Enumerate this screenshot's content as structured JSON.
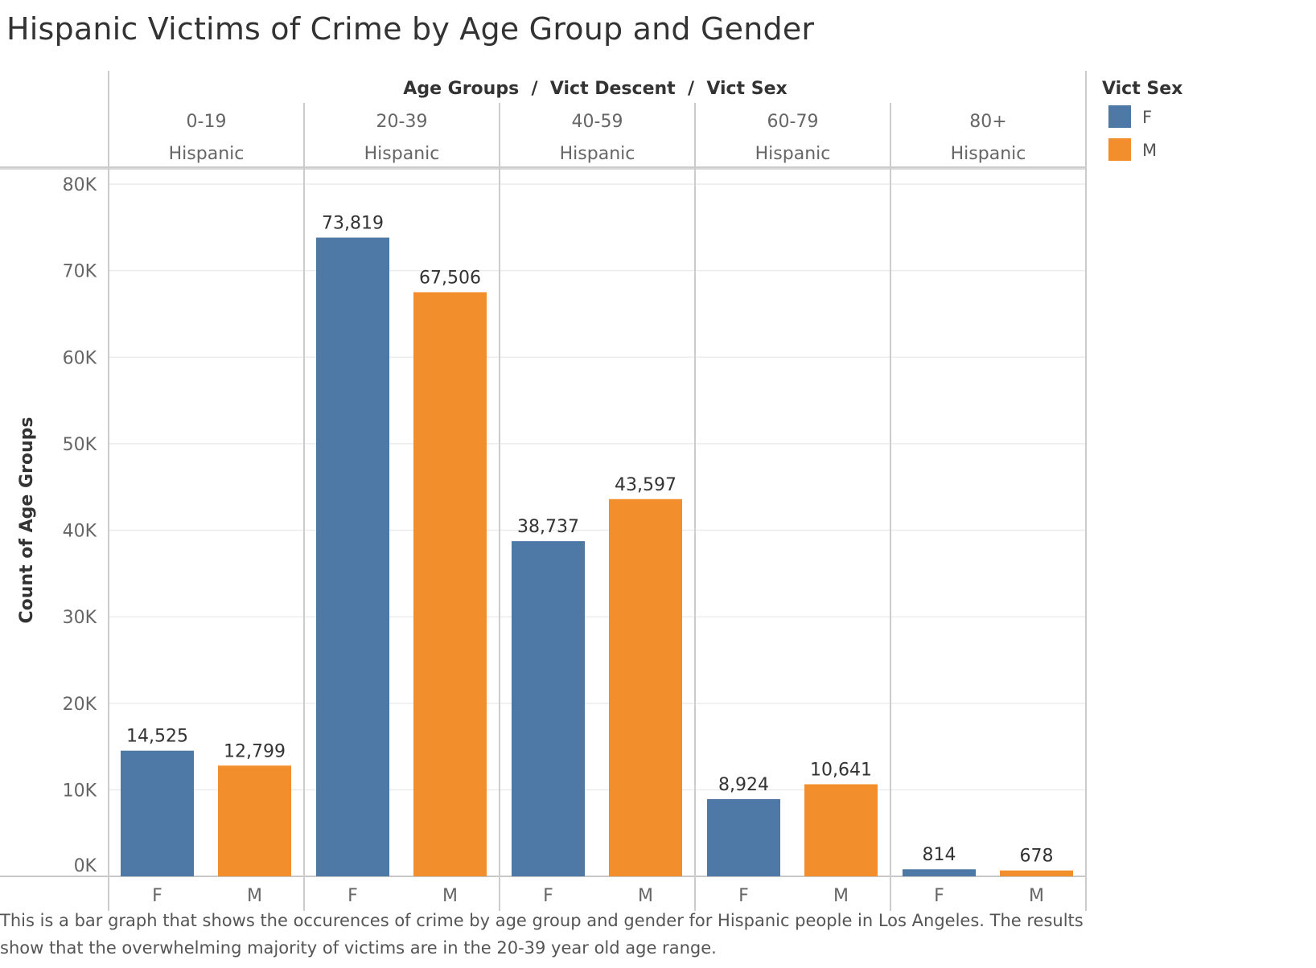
{
  "chart_data": {
    "type": "bar",
    "title": "Hispanic Victims of Crime by Age Group and Gender",
    "header_label": "Age Groups  /  Vict Descent  /  Vict Sex",
    "ylabel": "Count of Age Groups",
    "ylim": [
      0,
      80000
    ],
    "yticks": [
      0,
      10000,
      20000,
      30000,
      40000,
      50000,
      60000,
      70000,
      80000
    ],
    "ytick_labels": [
      "0K",
      "10K",
      "20K",
      "30K",
      "40K",
      "50K",
      "60K",
      "70K",
      "80K"
    ],
    "grid": true,
    "legend": {
      "title": "Vict Sex",
      "position": "right",
      "entries": [
        {
          "label": "F",
          "color": "#4e79a7"
        },
        {
          "label": "M",
          "color": "#f28e2b"
        }
      ]
    },
    "groups": [
      {
        "age_group": "0-19",
        "descent": "Hispanic",
        "bars": [
          {
            "sex": "F",
            "value": 14525,
            "label": "14,525"
          },
          {
            "sex": "M",
            "value": 12799,
            "label": "12,799"
          }
        ]
      },
      {
        "age_group": "20-39",
        "descent": "Hispanic",
        "bars": [
          {
            "sex": "F",
            "value": 73819,
            "label": "73,819"
          },
          {
            "sex": "M",
            "value": 67506,
            "label": "67,506"
          }
        ]
      },
      {
        "age_group": "40-59",
        "descent": "Hispanic",
        "bars": [
          {
            "sex": "F",
            "value": 38737,
            "label": "38,737"
          },
          {
            "sex": "M",
            "value": 43597,
            "label": "43,597"
          }
        ]
      },
      {
        "age_group": "60-79",
        "descent": "Hispanic",
        "bars": [
          {
            "sex": "F",
            "value": 8924,
            "label": "8,924"
          },
          {
            "sex": "M",
            "value": 10641,
            "label": "10,641"
          }
        ]
      },
      {
        "age_group": "80+",
        "descent": "Hispanic",
        "bars": [
          {
            "sex": "F",
            "value": 814,
            "label": "814"
          },
          {
            "sex": "M",
            "value": 678,
            "label": "678"
          }
        ]
      }
    ]
  },
  "caption": "This is a bar graph that shows the occurences of crime by age group and gender for Hispanic people in Los Angeles. The results show that the overwhelming majority of victims are in the 20-39 year old age range."
}
